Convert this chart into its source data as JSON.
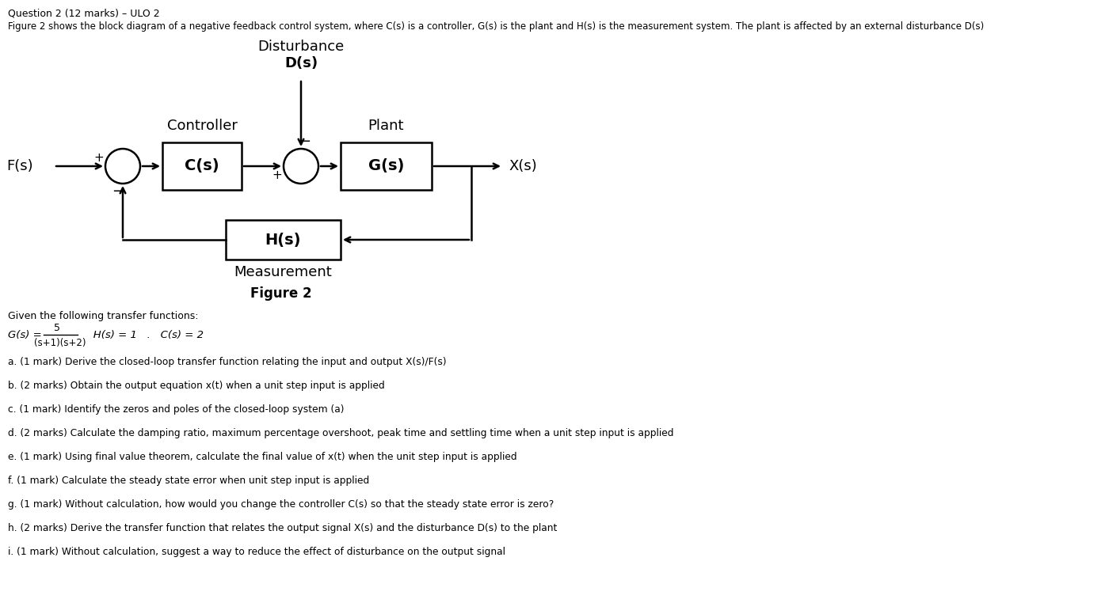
{
  "title_line1": "Question 2 (12 marks) – ULO 2",
  "desc": "Figure 2 shows the block diagram of a negative feedback control system, where C(s) is a controller, G(s) is the plant and H(s) is the measurement system. The plant is affected by an external disturbance D(s)",
  "disturbance_label": "Disturbance",
  "disturbance_var": "D(s)",
  "controller_label": "Controller",
  "plant_label": "Plant",
  "measurement_label": "Measurement",
  "figure_label": "Figure 2",
  "Fs_label": "F(s)",
  "Xs_label": "X(s)",
  "Cs_label": "C(s)",
  "Gs_label": "G(s)",
  "Hs_label": "H(s)",
  "given_tf": "Given the following transfer functions:",
  "tf_numerator": "5",
  "tf_denominator": "(s+1)(s+2)",
  "questions": [
    "a. (1 mark) Derive the closed-loop transfer function relating the input and output X(s)/F(s)",
    "b. (2 marks) Obtain the output equation x(t) when a unit step input is applied",
    "c. (1 mark) Identify the zeros and poles of the closed-loop system (a)",
    "d. (2 marks) Calculate the damping ratio, maximum percentage overshoot, peak time and settling time when a unit step input is applied",
    "e. (1 mark) Using final value theorem, calculate the final value of x(t) when the unit step input is applied",
    "f. (1 mark) Calculate the steady state error when unit step input is applied",
    "g. (1 mark) Without calculation, how would you change the controller C(s) so that the steady state error is zero?",
    "h. (2 marks) Derive the transfer function that relates the output signal X(s) and the disturbance D(s) to the plant",
    "i. (1 mark) Without calculation, suggest a way to reduce the effect of disturbance on the output signal"
  ],
  "bg_color": "#ffffff"
}
